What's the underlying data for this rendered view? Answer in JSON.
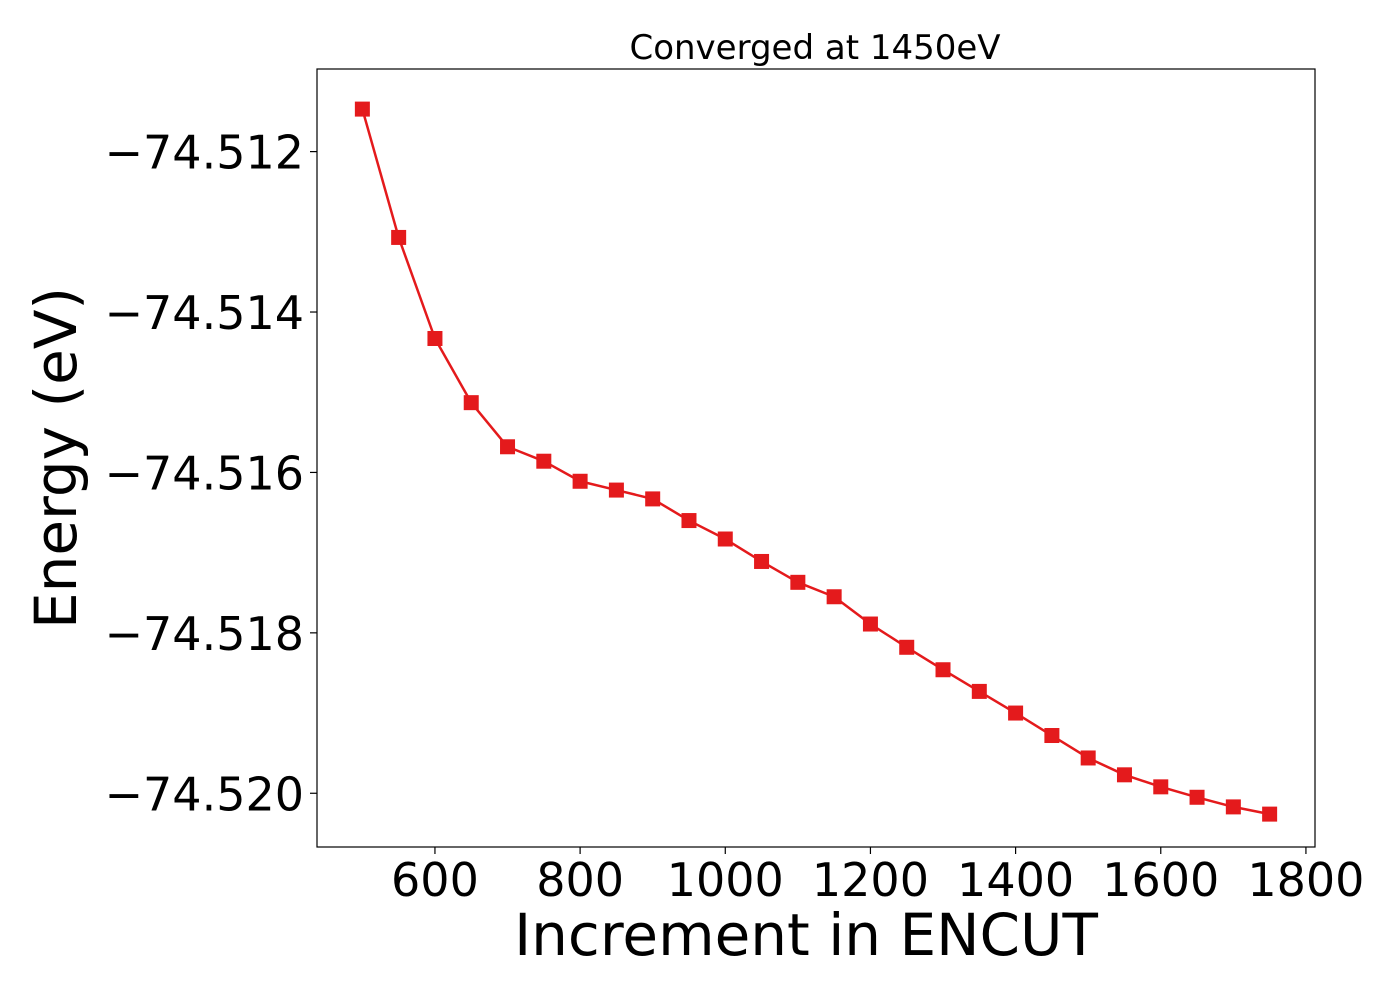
{
  "chart_data": {
    "type": "line",
    "title": "Converged at 1450eV",
    "xlabel": "Increment in ENCUT",
    "ylabel": "Energy (eV)",
    "xlim": [
      437.5,
      1812.5
    ],
    "ylim": [
      -74.52067,
      -74.51097
    ],
    "xticks": [
      600,
      800,
      1000,
      1200,
      1400,
      1600,
      1800
    ],
    "xtick_labels": [
      "600",
      "800",
      "1000",
      "1200",
      "1400",
      "1600",
      "1800"
    ],
    "yticks": [
      -74.512,
      -74.514,
      -74.516,
      -74.518,
      -74.52
    ],
    "ytick_labels": [
      "−74.512",
      "−74.514",
      "−74.516",
      "−74.518",
      "−74.520"
    ],
    "grid": false,
    "legend": false,
    "series": [
      {
        "color": "#e41a1c",
        "marker": "square",
        "x": [
          500,
          550,
          600,
          650,
          700,
          750,
          800,
          850,
          900,
          950,
          1000,
          1050,
          1100,
          1150,
          1200,
          1250,
          1300,
          1350,
          1400,
          1450,
          1500,
          1550,
          1600,
          1650,
          1700,
          1750
        ],
        "y": [
          -74.51147,
          -74.51307,
          -74.51433,
          -74.51513,
          -74.51568,
          -74.51586,
          -74.51611,
          -74.51622,
          -74.51633,
          -74.5166,
          -74.51683,
          -74.51711,
          -74.51737,
          -74.51755,
          -74.51789,
          -74.51818,
          -74.51846,
          -74.51873,
          -74.519,
          -74.51928,
          -74.51956,
          -74.51977,
          -74.51992,
          -74.52005,
          -74.52017,
          -74.52026
        ]
      }
    ]
  }
}
